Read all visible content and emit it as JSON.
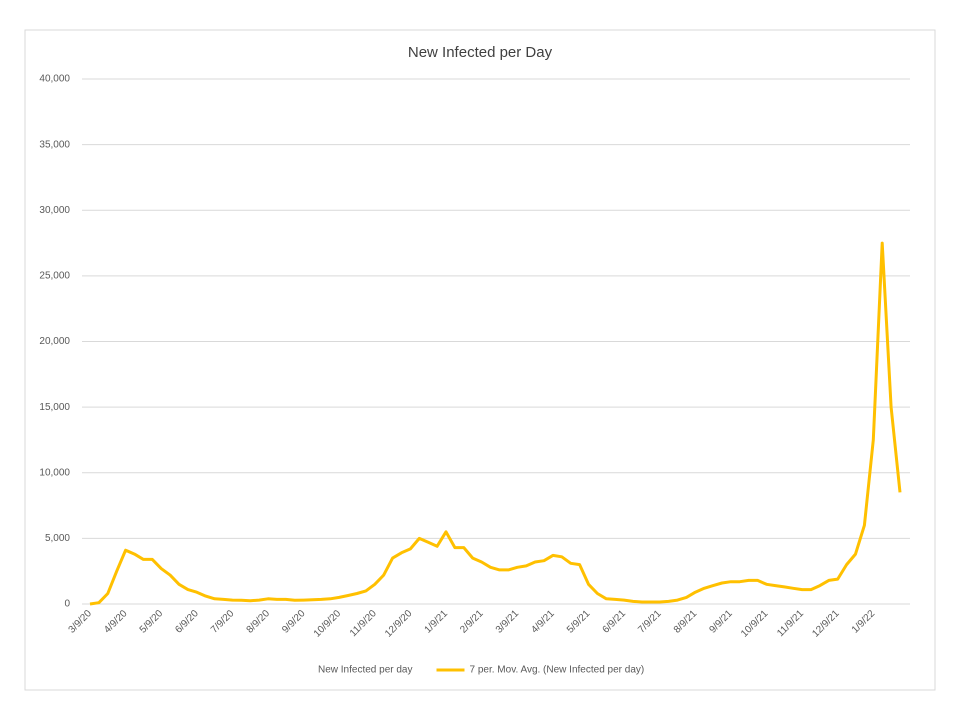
{
  "chart_data": {
    "type": "line",
    "title": "New Infected per Day",
    "categories": [
      "3/9/20",
      null,
      null,
      null,
      "4/9/20",
      null,
      null,
      null,
      "5/9/20",
      null,
      null,
      null,
      "6/9/20",
      null,
      null,
      null,
      "7/9/20",
      null,
      null,
      null,
      "8/9/20",
      null,
      null,
      null,
      "9/9/20",
      null,
      null,
      null,
      "10/9/20",
      null,
      null,
      null,
      "11/9/20",
      null,
      null,
      null,
      "12/9/20",
      null,
      null,
      null,
      "1/9/21",
      null,
      null,
      null,
      "2/9/21",
      null,
      null,
      null,
      "3/9/21",
      null,
      null,
      null,
      "4/9/21",
      null,
      null,
      null,
      "5/9/21",
      null,
      null,
      null,
      "6/9/21",
      null,
      null,
      null,
      "7/9/21",
      null,
      null,
      null,
      "8/9/21",
      null,
      null,
      null,
      "9/9/21",
      null,
      null,
      null,
      "10/9/21",
      null,
      null,
      null,
      "11/9/21",
      null,
      null,
      null,
      "12/9/21",
      null,
      null,
      null,
      "1/9/22",
      null,
      null,
      null
    ],
    "series": [
      {
        "name": "New Infected per day",
        "color": null,
        "values": [
          null,
          null,
          null,
          null,
          null,
          null,
          null,
          null,
          null,
          null,
          null,
          null,
          null,
          null,
          null,
          null,
          null,
          null,
          null,
          null,
          null,
          null,
          null,
          null,
          null,
          null,
          null,
          null,
          null,
          null,
          null,
          null,
          null,
          null,
          null,
          null,
          null,
          null,
          null,
          null,
          null,
          null,
          null,
          null,
          null,
          null,
          null,
          null,
          null,
          null,
          null,
          null,
          null,
          null,
          null,
          null,
          null,
          null,
          null,
          null,
          null,
          null,
          null,
          null,
          null,
          null,
          null,
          null,
          null,
          null,
          null,
          null,
          null,
          null,
          null,
          null,
          null,
          null,
          null,
          null,
          null,
          null,
          null,
          null,
          null,
          null,
          null,
          null,
          null,
          null,
          null,
          null
        ]
      },
      {
        "name": "7 per. Mov. Avg. (New Infected per day)",
        "color": "#ffc000",
        "values": [
          0,
          100,
          800,
          2500,
          4100,
          3800,
          3400,
          3400,
          2700,
          2200,
          1500,
          1100,
          900,
          600,
          400,
          350,
          300,
          280,
          250,
          300,
          400,
          350,
          350,
          280,
          300,
          320,
          350,
          400,
          500,
          650,
          800,
          1000,
          1500,
          2200,
          3500,
          3900,
          4200,
          5000,
          4700,
          4400,
          5500,
          4300,
          4300,
          3500,
          3200,
          2800,
          2600,
          2600,
          2800,
          2900,
          3200,
          3300,
          3700,
          3600,
          3100,
          3000,
          1500,
          800,
          400,
          350,
          300,
          200,
          150,
          150,
          150,
          200,
          300,
          500,
          900,
          1200,
          1400,
          1600,
          1700,
          1700,
          1800,
          1800,
          1500,
          1400,
          1300,
          1200,
          1100,
          1100,
          1400,
          1800,
          1900,
          3000,
          3800,
          6000,
          12500,
          27500,
          15000,
          8500
        ]
      }
    ],
    "ylim": [
      0,
      40000
    ],
    "yticks": [
      0,
      {
        "value": 5000,
        "label": "5,000"
      },
      {
        "value": 10000,
        "label": "10,000"
      },
      {
        "value": 15000,
        "label": "15,000"
      },
      {
        "value": 20000,
        "label": "20,000"
      },
      {
        "value": 25000,
        "label": "25,000"
      },
      {
        "value": 30000,
        "label": "30,000"
      },
      {
        "value": 35000,
        "label": "35,000"
      },
      {
        "value": 40000,
        "label": "40,000"
      }
    ],
    "grid": true,
    "legend": "bottom"
  }
}
